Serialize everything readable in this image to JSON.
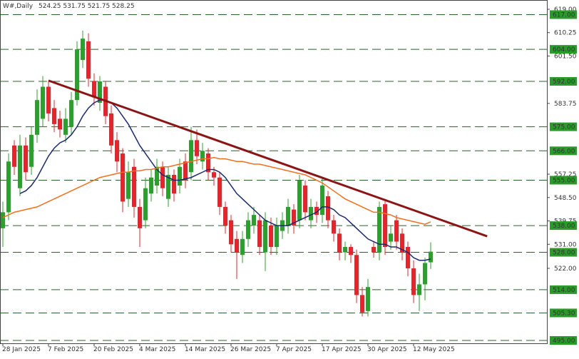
{
  "chart_data": {
    "type": "candlestick",
    "title": "W#,Daily",
    "quote": "524.25 531.75 521.75 528.25",
    "categories": [
      "28 Jan 2025",
      null,
      null,
      null,
      null,
      null,
      null,
      null,
      "7 Feb 2025",
      null,
      null,
      null,
      null,
      null,
      null,
      null,
      "20 Feb 2025",
      null,
      null,
      null,
      null,
      null,
      null,
      null,
      "4 Mar 2025",
      null,
      null,
      null,
      null,
      null,
      null,
      null,
      "14 Mar 2025",
      null,
      null,
      null,
      null,
      null,
      null,
      null,
      "26 Mar 2025",
      null,
      null,
      null,
      null,
      null,
      null,
      null,
      "7 Apr 2025",
      null,
      null,
      null,
      null,
      null,
      null,
      null,
      "17 Apr 2025",
      null,
      null,
      null,
      null,
      null,
      null,
      null,
      "30 Apr 2025",
      null,
      null,
      null,
      null,
      null,
      null,
      null,
      "12 May 2025",
      null,
      null,
      null
    ],
    "open": [
      537,
      543,
      568,
      552,
      568,
      560,
      572,
      578,
      590,
      582,
      578,
      572,
      575,
      585,
      600,
      607,
      592,
      584,
      590,
      580,
      570,
      565,
      548,
      560,
      545,
      540,
      550,
      553,
      560,
      548,
      557,
      553,
      562,
      558,
      570,
      562,
      565,
      558,
      556,
      545,
      540,
      533,
      527,
      533,
      538,
      540,
      528,
      538,
      530,
      536,
      538,
      544,
      540,
      553,
      540,
      545,
      542,
      549,
      540,
      535,
      528,
      530,
      527,
      512,
      506,
      530,
      528,
      546,
      532,
      540,
      535,
      530,
      522,
      512,
      516,
      524.25
    ],
    "high": [
      547,
      565,
      570,
      572,
      571,
      575,
      589,
      594,
      592,
      585,
      581,
      582,
      588,
      607,
      611,
      610,
      595,
      594,
      592,
      583,
      573,
      567,
      562,
      563,
      548,
      556,
      559,
      563,
      562,
      560,
      559,
      563,
      565,
      575,
      574,
      569,
      567,
      560,
      558,
      547,
      542,
      536,
      536,
      543,
      545,
      542,
      543,
      541,
      541,
      543,
      548,
      546,
      557,
      555,
      548,
      547,
      556,
      551,
      542,
      537,
      532,
      531,
      529,
      515,
      518,
      532,
      547,
      548,
      538,
      542,
      537,
      532,
      525,
      520,
      526,
      531.75
    ],
    "low": [
      530,
      540,
      557,
      549,
      555,
      557,
      569,
      575,
      577,
      573,
      571,
      569,
      572,
      583,
      597,
      590,
      583,
      581,
      576,
      565,
      558,
      543,
      545,
      541,
      530,
      537,
      547,
      550,
      549,
      545,
      547,
      550,
      552,
      555,
      561,
      559,
      555,
      553,
      542,
      535,
      528,
      518,
      524,
      530,
      535,
      527,
      521,
      527,
      527,
      533,
      535,
      535,
      537,
      540,
      537,
      539,
      539,
      537,
      532,
      525,
      525,
      524,
      509,
      504,
      504,
      526,
      525,
      527,
      529,
      529,
      525,
      519,
      509,
      506,
      510,
      521.75
    ],
    "close": [
      543,
      562,
      560,
      568,
      558,
      572,
      585,
      590,
      580,
      576,
      574,
      578,
      585,
      604,
      608,
      593,
      586,
      592,
      579,
      568,
      562,
      547,
      558,
      545,
      537,
      552,
      556,
      560,
      552,
      557,
      550,
      560,
      555,
      570,
      564,
      566,
      558,
      556,
      545,
      538,
      531,
      528,
      533,
      540,
      542,
      530,
      540,
      530,
      538,
      540,
      545,
      538,
      555,
      543,
      545,
      542,
      553,
      540,
      535,
      528,
      530,
      527,
      512,
      505.5,
      515,
      528,
      545,
      530,
      535,
      532,
      528,
      522,
      512,
      516,
      524,
      528.25
    ],
    "up_color": "#2ca02c",
    "down_color": "#e8232a",
    "ma_lines": [
      {
        "color": "#1b2a6b",
        "values": [
          null,
          null,
          null,
          550,
          551,
          553,
          556,
          560,
          564,
          567,
          569,
          570,
          572,
          575,
          579,
          582,
          584,
          585,
          585,
          584,
          582,
          579,
          576,
          572,
          568,
          565,
          562,
          559,
          557,
          556,
          555,
          555,
          555.5,
          556,
          557,
          558,
          559,
          559,
          558,
          556,
          553,
          550,
          548,
          546,
          544,
          542,
          540,
          539,
          538,
          538,
          538,
          539,
          540,
          541,
          542,
          543,
          545,
          545,
          544,
          542,
          541,
          539,
          537,
          535,
          533,
          532,
          531,
          531,
          530,
          530,
          529,
          528,
          526,
          525,
          525,
          525.5
        ]
      },
      {
        "color": "#f07020",
        "values": [
          541,
          542,
          543,
          543.5,
          544,
          544.5,
          545,
          546,
          547,
          548,
          549,
          550,
          551,
          552,
          553,
          554,
          555,
          556,
          556.5,
          557,
          557.5,
          558,
          558,
          558.5,
          558.5,
          559,
          559,
          559.5,
          560,
          560,
          560.5,
          561,
          561.5,
          562,
          562.5,
          563,
          563,
          563.5,
          563,
          563,
          562.5,
          562,
          562,
          561.5,
          561,
          561,
          560.5,
          560,
          559.5,
          559,
          558.5,
          558,
          557.5,
          557,
          556,
          555,
          554,
          552.5,
          551,
          549.5,
          548,
          547,
          546,
          545,
          544,
          543,
          543,
          542.5,
          542,
          541,
          540.5,
          540,
          539.5,
          539,
          538.5,
          539.4
        ]
      }
    ],
    "trendline": {
      "color": "#8b1414",
      "x": [
        8,
        84.9
      ],
      "y": [
        592.3,
        534
      ]
    },
    "levels": [
      {
        "value": 617,
        "label": "617.00"
      },
      {
        "value": 604,
        "label": "604.00"
      },
      {
        "value": 592,
        "label": "592.00"
      },
      {
        "value": 575,
        "label": "575.00"
      },
      {
        "value": 566,
        "label": "566.00"
      },
      {
        "value": 555,
        "label": "555.00"
      },
      {
        "value": 538,
        "label": "538.00"
      },
      {
        "value": 528,
        "label": "528.00"
      },
      {
        "value": 514,
        "label": "514.00"
      },
      {
        "value": 505.3,
        "label": "505.30"
      },
      {
        "value": 495,
        "label": "495.00"
      }
    ],
    "level_color": "#2a9a2a",
    "ylim": [
      493.93,
      622.47
    ],
    "yticks": [
      {
        "value": 619,
        "label": "619.00"
      },
      {
        "value": 610.25,
        "label": "610.25"
      },
      {
        "value": 601.5,
        "label": "601.50"
      },
      {
        "value": 583.75,
        "label": "583.75"
      },
      {
        "value": 557.25,
        "label": "557.25"
      },
      {
        "value": 548.5,
        "label": "548.50"
      },
      {
        "value": 539.75,
        "label": "539.75"
      },
      {
        "value": 531,
        "label": "531.00"
      },
      {
        "value": 522,
        "label": "522.00"
      }
    ]
  }
}
